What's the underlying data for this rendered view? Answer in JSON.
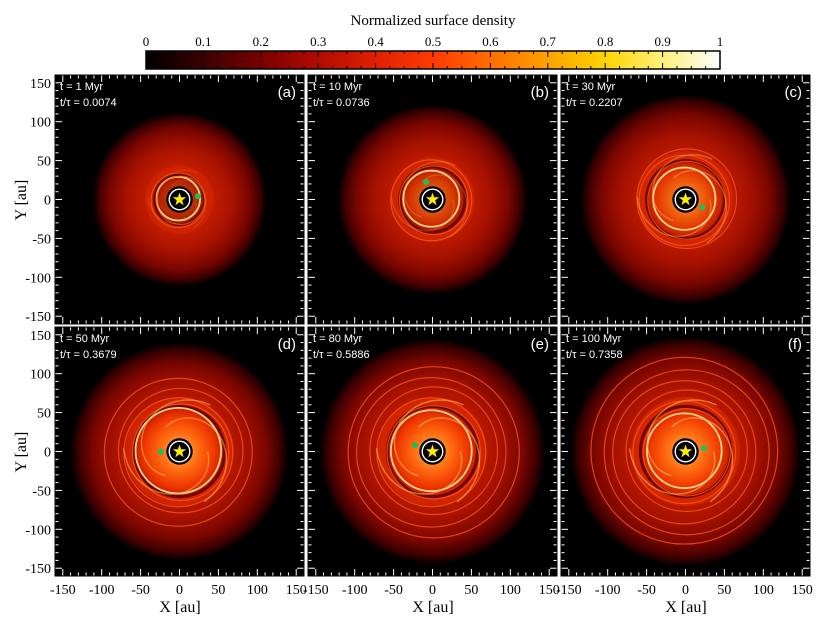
{
  "colorbar": {
    "title": "Normalized surface density",
    "ticks": [
      "0",
      "0.1",
      "0.2",
      "0.3",
      "0.4",
      "0.5",
      "0.6",
      "0.7",
      "0.8",
      "0.9",
      "1"
    ],
    "tick_values": [
      0,
      0.1,
      0.2,
      0.3,
      0.4,
      0.5,
      0.6,
      0.7,
      0.8,
      0.9,
      1
    ],
    "colors": [
      "#000000",
      "#3a0000",
      "#7a0000",
      "#b00c00",
      "#e02000",
      "#ff3a00",
      "#ff6e00",
      "#ffa200",
      "#ffd400",
      "#fff07a",
      "#ffffff"
    ]
  },
  "axes": {
    "xlabel": "X [au]",
    "ylabel": "Y [au]",
    "xticks": [
      "-150",
      "-100",
      "-50",
      "0",
      "50",
      "100",
      "150"
    ],
    "yticks": [
      "150",
      "100",
      "50",
      "0",
      "-50",
      "-100",
      "-150"
    ],
    "tick_values": [
      -150,
      -100,
      -50,
      0,
      50,
      100,
      150
    ],
    "lim": [
      -160,
      160
    ]
  },
  "panels": [
    {
      "label": "(a)",
      "time": "t = 1 Myr",
      "ratio": "t/τ = 0.0074",
      "planet_angle_deg": 10,
      "planet_r_au": 24
    },
    {
      "label": "(b)",
      "time": "t = 10 Myr",
      "ratio": "t/τ = 0.0736",
      "planet_angle_deg": 110,
      "planet_r_au": 24
    },
    {
      "label": "(c)",
      "time": "t = 30 Myr",
      "ratio": "t/τ = 0.2207",
      "planet_angle_deg": -25,
      "planet_r_au": 24
    },
    {
      "label": "(d)",
      "time": "t = 50 Myr",
      "ratio": "t/τ = 0.3679",
      "planet_angle_deg": 180,
      "planet_r_au": 24
    },
    {
      "label": "(e)",
      "time": "t = 80 Myr",
      "ratio": "t/τ = 0.5886",
      "planet_angle_deg": 160,
      "planet_r_au": 24
    },
    {
      "label": "(f)",
      "time": "t = 100 Myr",
      "ratio": "t/τ = 0.7358",
      "planet_angle_deg": 10,
      "planet_r_au": 24
    }
  ],
  "chart_data": {
    "type": "heatmap",
    "title": "",
    "colorbar_label": "Normalized surface density",
    "colorbar_range": [
      0,
      1
    ],
    "xlabel": "X [au]",
    "ylabel": "Y [au]",
    "xlim": [
      -160,
      160
    ],
    "ylim": [
      -160,
      160
    ],
    "grid": false,
    "panels": [
      "(a)",
      "(b)",
      "(c)",
      "(d)",
      "(e)",
      "(f)"
    ],
    "times_myr": [
      1,
      10,
      30,
      50,
      80,
      100
    ],
    "t_over_tau": [
      0.0074,
      0.0736,
      0.2207,
      0.3679,
      0.5886,
      0.7358
    ],
    "marker_colors": {
      "star": "#ffee00",
      "planet": "#18c060",
      "orbit": "#ffffff"
    }
  }
}
